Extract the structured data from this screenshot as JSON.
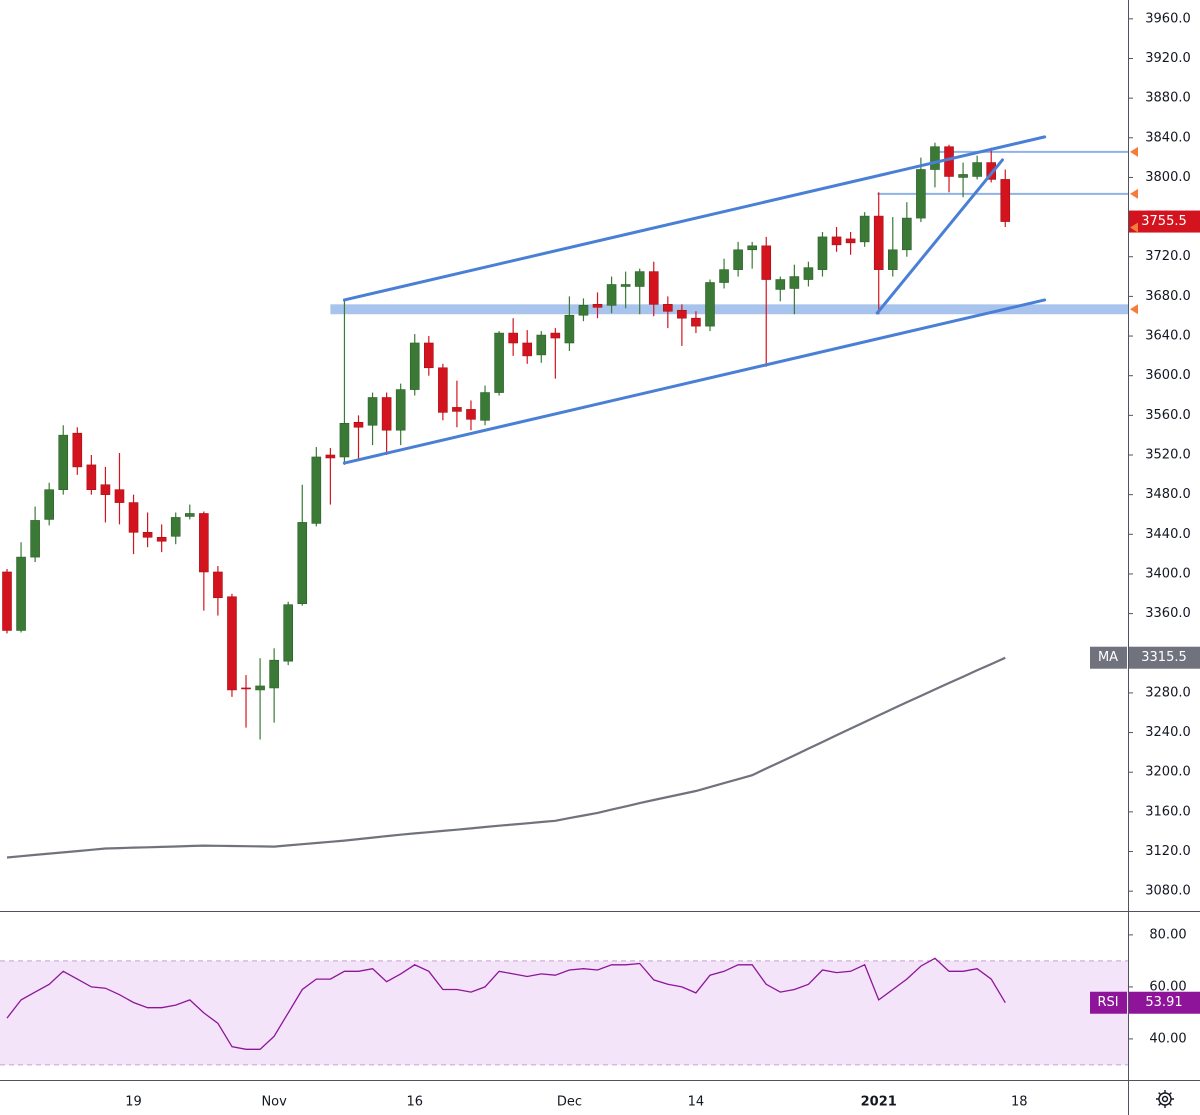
{
  "chart_data": [
    {
      "type": "candlestick",
      "categories": [
        null,
        null,
        null,
        null,
        null,
        null,
        null,
        null,
        null,
        "19",
        null,
        null,
        null,
        null,
        null,
        null,
        null,
        null,
        null,
        "Nov",
        null,
        null,
        null,
        null,
        null,
        null,
        null,
        null,
        null,
        "16",
        null,
        null,
        null,
        null,
        null,
        null,
        null,
        null,
        null,
        null,
        "Dec",
        null,
        null,
        null,
        null,
        null,
        null,
        null,
        null,
        "14",
        null,
        null,
        null,
        null,
        null,
        null,
        null,
        null,
        null,
        null,
        null,
        null,
        "2021",
        null,
        null,
        null,
        null,
        null,
        null,
        null,
        null,
        null,
        "18"
      ],
      "open": [
        3402,
        3343,
        3417,
        3455,
        3485,
        3542,
        3510,
        3490,
        3485,
        3472,
        3442,
        3437,
        3438,
        3458,
        3461,
        3402,
        3377,
        3285,
        3283,
        3285,
        3312,
        3370,
        3451,
        3520,
        3518,
        3553,
        3550,
        3578,
        3545,
        3586,
        3633,
        3608,
        3568,
        3566,
        3555,
        3583,
        3643,
        3633,
        3621,
        3643,
        3633,
        3661,
        3672,
        3671,
        3690,
        3690,
        3705,
        3672,
        3666,
        3658,
        3650,
        3694,
        3707,
        3727,
        3731,
        3687,
        3688,
        3697,
        3707,
        3740,
        3738,
        3735,
        3761,
        3707,
        3727,
        3759,
        3808,
        3831,
        3800,
        3801,
        3815,
        3798,
        null
      ],
      "high": [
        3405,
        3432,
        3468,
        3492,
        3550,
        3548,
        3520,
        3508,
        3522,
        3480,
        3462,
        3450,
        3462,
        3470,
        3463,
        3408,
        3380,
        3298,
        3315,
        3325,
        3372,
        3490,
        3528,
        3527,
        3676,
        3560,
        3583,
        3583,
        3592,
        3642,
        3640,
        3612,
        3595,
        3575,
        3590,
        3645,
        3658,
        3646,
        3645,
        3648,
        3680,
        3678,
        3684,
        3700,
        3705,
        3708,
        3715,
        3680,
        3672,
        3665,
        3697,
        3718,
        3735,
        3735,
        3740,
        3700,
        3712,
        3715,
        3745,
        3750,
        3745,
        3765,
        3785,
        3760,
        3775,
        3820,
        3835,
        3833,
        3815,
        3822,
        3830,
        3808,
        null
      ],
      "low": [
        3340,
        3341,
        3412,
        3449,
        3480,
        3500,
        3480,
        3452,
        3450,
        3420,
        3427,
        3422,
        3430,
        3455,
        3363,
        3358,
        3276,
        3245,
        3233,
        3250,
        3308,
        3368,
        3448,
        3470,
        3510,
        3515,
        3530,
        3520,
        3530,
        3580,
        3600,
        3555,
        3548,
        3545,
        3550,
        3580,
        3620,
        3612,
        3613,
        3597,
        3625,
        3655,
        3658,
        3663,
        3668,
        3662,
        3660,
        3648,
        3630,
        3643,
        3645,
        3688,
        3700,
        3708,
        3609,
        3675,
        3662,
        3690,
        3700,
        3725,
        3722,
        3730,
        3662,
        3700,
        3720,
        3755,
        3790,
        3785,
        3780,
        3798,
        3795,
        3750,
        null
      ],
      "close": [
        3343,
        3417,
        3454,
        3485,
        3540,
        3508,
        3485,
        3480,
        3472,
        3442,
        3437,
        3433,
        3457,
        3461,
        3402,
        3376,
        3283,
        3284,
        3287,
        3313,
        3369,
        3452,
        3518,
        3517,
        3552,
        3548,
        3578,
        3545,
        3586,
        3633,
        3608,
        3563,
        3564,
        3556,
        3583,
        3643,
        3633,
        3620,
        3641,
        3638,
        3661,
        3671,
        3669,
        3692,
        3692,
        3705,
        3672,
        3665,
        3658,
        3650,
        3694,
        3707,
        3727,
        3731,
        3697,
        3697,
        3700,
        3709,
        3740,
        3732,
        3734,
        3761,
        3707,
        3727,
        3759,
        3808,
        3831,
        3801,
        3803,
        3815,
        3798,
        3755.5,
        null
      ],
      "up_color": "#3b7a36",
      "down_color": "#d3141f",
      "series": [
        {
          "name": "MA",
          "color": "#70737d",
          "values": [
            3114,
            3115.3,
            3116.6,
            3117.9,
            3119.1,
            3120.4,
            3121.7,
            3123,
            3123.4,
            3123.9,
            3124.3,
            3124.7,
            3125.1,
            3125.6,
            3126,
            3125.8,
            3125.6,
            3125.4,
            3125.2,
            3125,
            3126.2,
            3127.4,
            3128.6,
            3129.8,
            3131,
            3132.5,
            3134,
            3135.5,
            3137,
            3138.3,
            3139.5,
            3140.8,
            3142,
            3143.3,
            3144.7,
            3146,
            3147.3,
            3148.5,
            3149.8,
            3151,
            3153.7,
            3156.3,
            3159,
            3162.3,
            3165.5,
            3168.8,
            3172,
            3175,
            3178,
            3181,
            3185,
            3189,
            3193,
            3197,
            3203.7,
            3210.3,
            3217,
            3223.8,
            3230.5,
            3237.3,
            3244,
            3250.7,
            3257.3,
            3264,
            3270.5,
            3277,
            3283.5,
            3290,
            3296.4,
            3302.8,
            3309.1,
            3315.5,
            null
          ]
        }
      ],
      "ylim": [
        3061,
        3979
      ],
      "yticks": [
        {
          "value": 3080,
          "label": "3080.0"
        },
        {
          "value": 3120,
          "label": "3120.0"
        },
        {
          "value": 3160,
          "label": "3160.0"
        },
        {
          "value": 3200,
          "label": "3200.0"
        },
        {
          "value": 3240,
          "label": "3240.0"
        },
        {
          "value": 3280,
          "label": "3280.0"
        },
        {
          "value": 3320,
          "label": "3320.0"
        },
        {
          "value": 3360,
          "label": "3360.0"
        },
        {
          "value": 3400,
          "label": "3400.0"
        },
        {
          "value": 3440,
          "label": "3440.0"
        },
        {
          "value": 3480,
          "label": "3480.0"
        },
        {
          "value": 3520,
          "label": "3520.0"
        },
        {
          "value": 3560,
          "label": "3560.0"
        },
        {
          "value": 3600,
          "label": "3600.0"
        },
        {
          "value": 3640,
          "label": "3640.0"
        },
        {
          "value": 3680,
          "label": "3680.0"
        },
        {
          "value": 3720,
          "label": "3720.0"
        },
        {
          "value": 3760,
          "label": "3760.0"
        },
        {
          "value": 3800,
          "label": "3800.0"
        },
        {
          "value": 3840,
          "label": "3840.0"
        },
        {
          "value": 3880,
          "label": "3880.0"
        },
        {
          "value": 3920,
          "label": "3920.0"
        },
        {
          "value": 3960,
          "label": "3960.0"
        }
      ],
      "trendlines": [
        {
          "x": [
            24,
            73.8
          ],
          "y": [
            3676.4,
            3840.9
          ],
          "color": "#4a7fd6"
        },
        {
          "x": [
            24,
            73.8
          ],
          "y": [
            3511.9,
            3676.4
          ],
          "color": "#4a7fd6"
        },
        {
          "x": [
            61.9,
            70.8
          ],
          "y": [
            3663.3,
            3817.7
          ],
          "color": "#4a7fd6"
        }
      ],
      "hlines": [
        {
          "price": 3825.8,
          "x0": 66,
          "color": "#8fb2e8"
        },
        {
          "price": 3783.4,
          "x0": 61.9,
          "color": "#8fb2e8"
        }
      ],
      "zones": [
        {
          "ylim": [
            3662,
            3672
          ],
          "x0": 23,
          "color": "#a9c4ec"
        }
      ]
    },
    {
      "type": "line",
      "series": [
        {
          "name": "RSI",
          "color": "#8e1599",
          "values": [
            48,
            55,
            58,
            61,
            66,
            63,
            60,
            59.5,
            57,
            54,
            52,
            52,
            53,
            55,
            50,
            46,
            37,
            36,
            36,
            41,
            50,
            59,
            63,
            63,
            66,
            66,
            67,
            62,
            65,
            68.5,
            66,
            59,
            59,
            58,
            60,
            66,
            65,
            64,
            65,
            64.5,
            66.5,
            67,
            66.5,
            68.5,
            68.5,
            69,
            62.7,
            61,
            60,
            57.7,
            64.5,
            66,
            68.5,
            68.5,
            61,
            58,
            59,
            61,
            66.5,
            65.5,
            66,
            68.5,
            55,
            59,
            63,
            68,
            71,
            66,
            66,
            67,
            63,
            53.91,
            null
          ]
        }
      ],
      "bands": [
        30,
        70
      ],
      "band_color": "#f3e4fa",
      "ylim": [
        24.2,
        88.8
      ],
      "yticks": [
        {
          "value": 40,
          "label": "40.00"
        },
        {
          "value": 60,
          "label": "60.00"
        },
        {
          "value": 80,
          "label": "80.00"
        }
      ]
    }
  ]
}
